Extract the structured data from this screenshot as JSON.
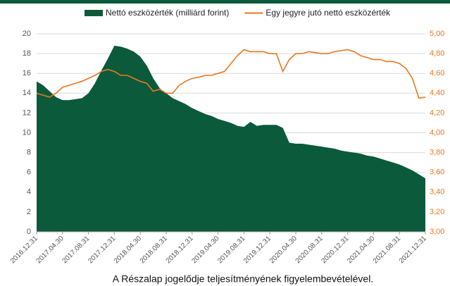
{
  "chart_data": {
    "type": "area-line",
    "categories": [
      "2016.12.31",
      null,
      null,
      null,
      "2017.04.30",
      null,
      null,
      null,
      "2017.08.31",
      null,
      null,
      null,
      "2017.12.31",
      null,
      null,
      null,
      "2018.04.30",
      null,
      null,
      null,
      "2018.08.31",
      null,
      null,
      null,
      "2018.12.31",
      null,
      null,
      null,
      "2019.04.30",
      null,
      null,
      null,
      "2019.08.31",
      null,
      null,
      null,
      "2019.12.31",
      null,
      null,
      null,
      "2020.04.30",
      null,
      null,
      null,
      "2020.08.31",
      null,
      null,
      null,
      "2020.12.31",
      null,
      null,
      null,
      "2021.04.30",
      null,
      null,
      null,
      "2021.08.31",
      null,
      null,
      null,
      "2021.12.31"
    ],
    "series": [
      {
        "name": "Nettó eszközérték (milliárd forint)",
        "color": "#0b5a3c",
        "kind": "area",
        "values": [
          15.2,
          14.8,
          14.2,
          13.6,
          13.3,
          13.3,
          13.4,
          13.5,
          14.0,
          15.0,
          16.3,
          17.5,
          18.8,
          18.7,
          18.5,
          18.2,
          17.7,
          16.8,
          15.5,
          14.5,
          14.0,
          13.5,
          13.2,
          12.9,
          12.5,
          12.2,
          11.9,
          11.7,
          11.4,
          11.2,
          11.0,
          10.7,
          10.6,
          11.1,
          10.7,
          10.8,
          10.8,
          10.8,
          10.5,
          9.0,
          8.9,
          8.9,
          8.8,
          8.7,
          8.6,
          8.5,
          8.4,
          8.2,
          8.1,
          8.0,
          7.9,
          7.7,
          7.6,
          7.4,
          7.2,
          7.0,
          6.8,
          6.5,
          6.2,
          5.8,
          5.4
        ]
      },
      {
        "name": "Egy jegyre jutó nettó eszközérték",
        "color": "#e87722",
        "kind": "line",
        "axis": "y2",
        "values": [
          4.4,
          4.38,
          4.36,
          4.4,
          4.46,
          4.48,
          4.5,
          4.52,
          4.55,
          4.58,
          4.62,
          4.64,
          4.62,
          4.58,
          4.58,
          4.55,
          4.52,
          4.5,
          4.42,
          4.44,
          4.4,
          4.4,
          4.48,
          4.52,
          4.55,
          4.56,
          4.58,
          4.58,
          4.6,
          4.62,
          4.7,
          4.78,
          4.84,
          4.82,
          4.82,
          4.82,
          4.8,
          4.8,
          4.62,
          4.74,
          4.8,
          4.8,
          4.82,
          4.81,
          4.8,
          4.8,
          4.82,
          4.83,
          4.84,
          4.82,
          4.78,
          4.76,
          4.74,
          4.74,
          4.72,
          4.72,
          4.7,
          4.65,
          4.55,
          4.35,
          4.36
        ]
      }
    ],
    "ylim": [
      0,
      20
    ],
    "yticks": [
      0,
      2,
      4,
      6,
      8,
      10,
      12,
      14,
      16,
      18,
      20
    ],
    "y2lim": [
      3,
      5
    ],
    "y2ticks": [
      {
        "value": 3,
        "label": "3,00"
      },
      {
        "value": 3.2,
        "label": "3,20"
      },
      {
        "value": 3.4,
        "label": "3,40"
      },
      {
        "value": 3.6,
        "label": "3,60"
      },
      {
        "value": 3.8,
        "label": "3,80"
      },
      {
        "value": 4,
        "label": "4,00"
      },
      {
        "value": 4.2,
        "label": "4,20"
      },
      {
        "value": 4.4,
        "label": "4,40"
      },
      {
        "value": 4.6,
        "label": "4,60"
      },
      {
        "value": 4.8,
        "label": "4,80"
      },
      {
        "value": 5,
        "label": "5,00"
      }
    ],
    "grid": true,
    "footnote": "A Részalap jogelődje teljesítményének figyelembevételével."
  }
}
